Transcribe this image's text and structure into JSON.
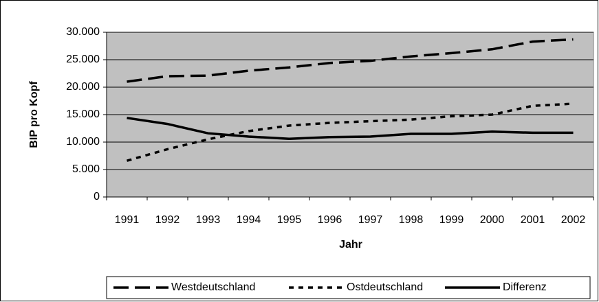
{
  "chart_data": {
    "type": "line",
    "xlabel": "Jahr",
    "ylabel": "BIP pro Kopf",
    "categories": [
      "1991",
      "1992",
      "1993",
      "1994",
      "1995",
      "1996",
      "1997",
      "1998",
      "1999",
      "2000",
      "2001",
      "2002"
    ],
    "series": [
      {
        "name": "Westdeutschland",
        "color": "#000000",
        "line_style": "dashed",
        "values": [
          21000,
          22000,
          22100,
          23000,
          23600,
          24400,
          24800,
          25600,
          26200,
          26900,
          28300,
          28700
        ]
      },
      {
        "name": "Ostdeutschland",
        "color": "#000000",
        "line_style": "dotted",
        "values": [
          6600,
          8700,
          10500,
          12000,
          13000,
          13500,
          13800,
          14100,
          14700,
          15000,
          16600,
          17000
        ]
      },
      {
        "name": "Differenz",
        "color": "#000000",
        "line_style": "solid",
        "values": [
          14400,
          13300,
          11600,
          11000,
          10600,
          10900,
          11000,
          11500,
          11500,
          11900,
          11700,
          11700
        ]
      }
    ],
    "ylim": [
      0,
      30000
    ],
    "yticks": [
      0,
      {
        "value": 5000,
        "label": "5.000"
      },
      {
        "value": 10000,
        "label": "10.000"
      },
      {
        "value": 15000,
        "label": "15.000"
      },
      {
        "value": 20000,
        "label": "20.000"
      },
      {
        "value": 25000,
        "label": "25.000"
      },
      {
        "value": 30000,
        "label": "30.000"
      }
    ],
    "grid": true,
    "plot_background": "#c0c0c0",
    "legend": "bottom"
  }
}
